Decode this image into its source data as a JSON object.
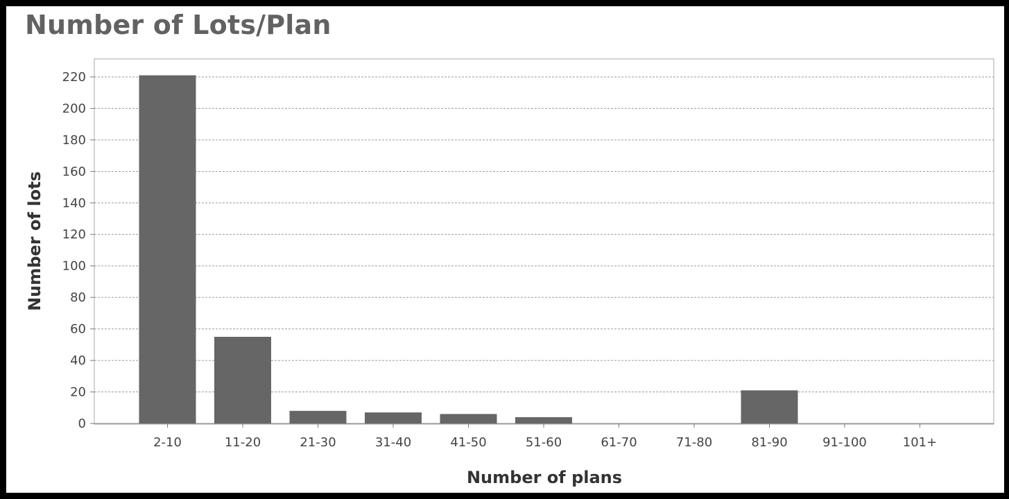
{
  "chart_data": {
    "type": "bar",
    "title": "Number of Lots/Plan",
    "xlabel": "Number of plans",
    "ylabel": "Number of lots",
    "categories": [
      "2-10",
      "11-20",
      "21-30",
      "31-40",
      "41-50",
      "51-60",
      "61-70",
      "71-80",
      "81-90",
      "91-100",
      "101+"
    ],
    "values": [
      221,
      55,
      8,
      7,
      6,
      4,
      0,
      0,
      21,
      0,
      0
    ],
    "ylim": [
      0,
      230
    ],
    "yticks": [
      "0",
      "20",
      "40",
      "60",
      "80",
      "100",
      "120",
      "140",
      "160",
      "180",
      "200",
      "220"
    ],
    "grid": true,
    "bar_color": "#666666"
  }
}
